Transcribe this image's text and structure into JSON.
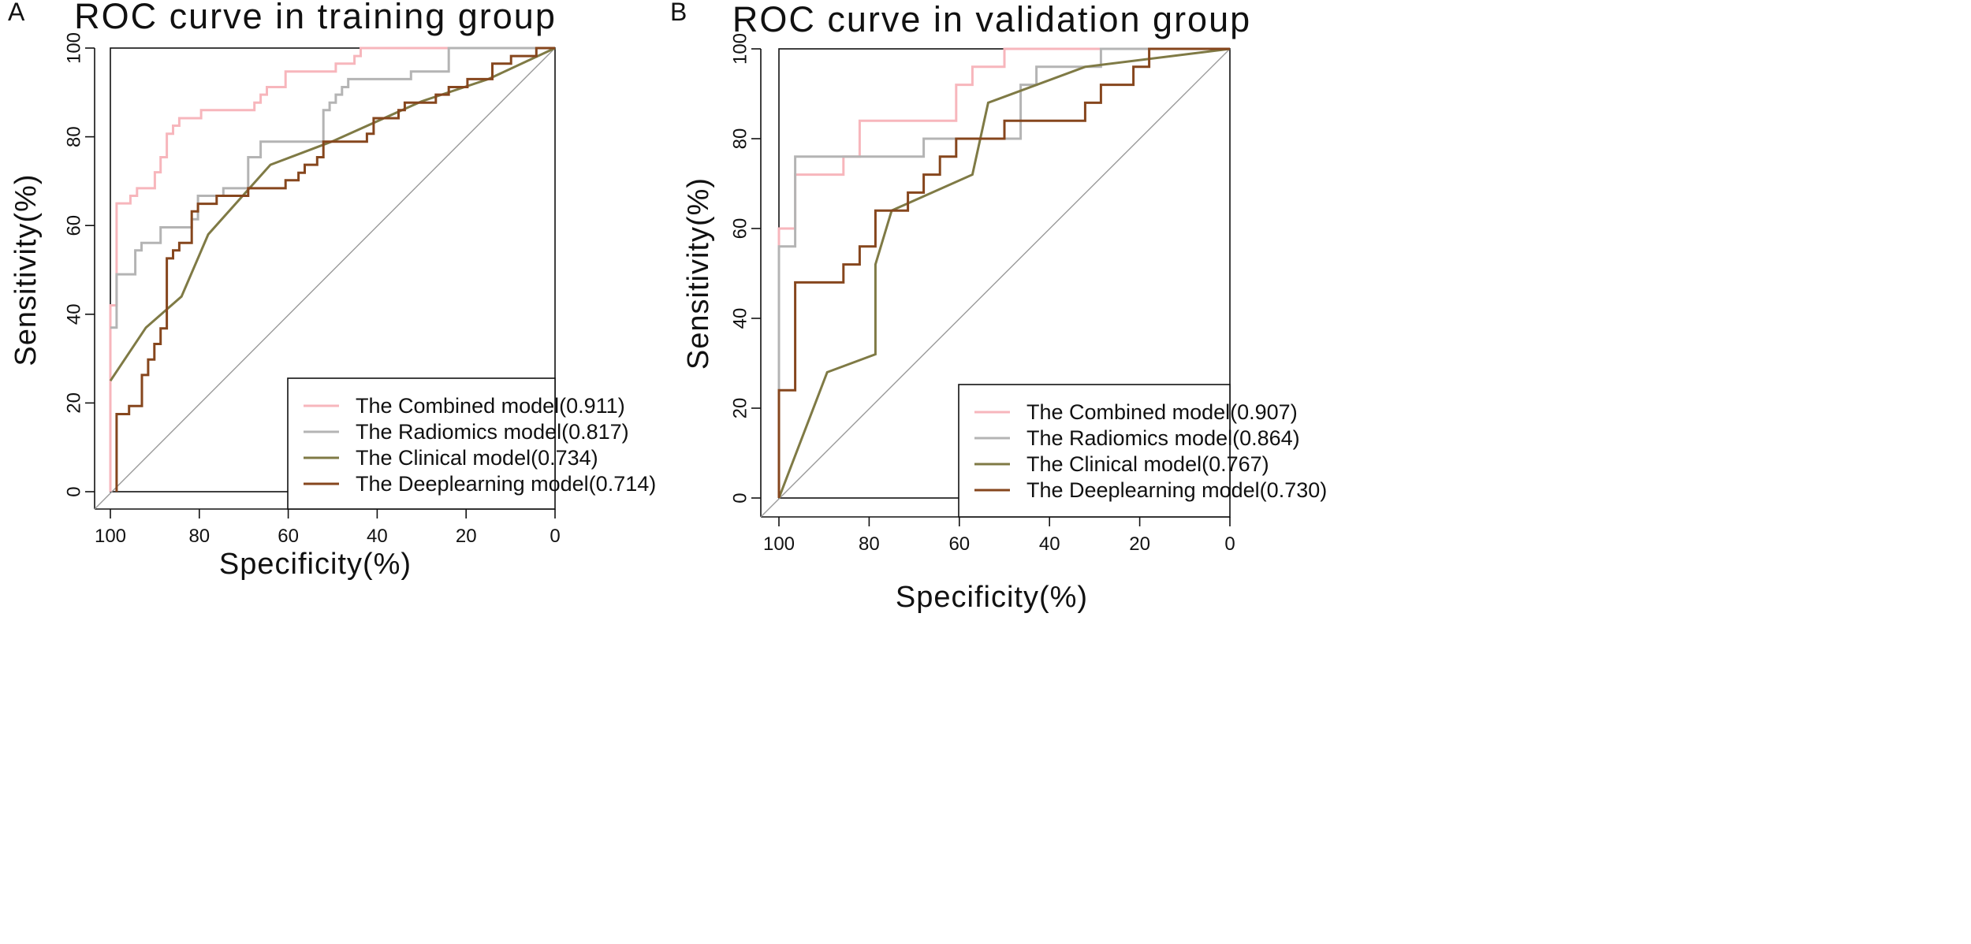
{
  "chart_data": [
    {
      "panel_label": "A",
      "type": "line",
      "title": "ROC curve in training group",
      "xlabel": "Specificity(%)",
      "ylabel": "Sensitivity(%)",
      "xlim": [
        100,
        0
      ],
      "ylim": [
        0,
        100
      ],
      "xticks": [
        100,
        80,
        60,
        40,
        20,
        0
      ],
      "yticks": [
        0,
        20,
        40,
        60,
        80,
        100
      ],
      "legend_position": "bottom-right",
      "reference_line": "diagonal",
      "series": [
        {
          "name": "The Combined model(0.911)",
          "color": "#f7b6bc",
          "points": [
            [
              100,
              0
            ],
            [
              100,
              42
            ],
            [
              98.6,
              42
            ],
            [
              98.6,
              65
            ],
            [
              95.5,
              65
            ],
            [
              95.5,
              66.7
            ],
            [
              94,
              66.7
            ],
            [
              94,
              68.4
            ],
            [
              90,
              68.4
            ],
            [
              90,
              72
            ],
            [
              88.7,
              72
            ],
            [
              88.7,
              75.4
            ],
            [
              87.3,
              75.4
            ],
            [
              87.3,
              80.7
            ],
            [
              85.9,
              80.7
            ],
            [
              85.9,
              82.5
            ],
            [
              84.5,
              82.5
            ],
            [
              84.5,
              84.2
            ],
            [
              79.6,
              84.2
            ],
            [
              79.6,
              86
            ],
            [
              67.6,
              86
            ],
            [
              67.6,
              87.7
            ],
            [
              66.2,
              87.7
            ],
            [
              66.2,
              89.5
            ],
            [
              64.8,
              89.5
            ],
            [
              64.8,
              91.2
            ],
            [
              60.6,
              91.2
            ],
            [
              60.6,
              94.7
            ],
            [
              49.3,
              94.7
            ],
            [
              49.3,
              96.5
            ],
            [
              45.1,
              96.5
            ],
            [
              45.1,
              98.2
            ],
            [
              43.7,
              98.2
            ],
            [
              43.7,
              100
            ],
            [
              0,
              100
            ]
          ]
        },
        {
          "name": "The Radiomics model(0.817)",
          "color": "#b4b4b4",
          "points": [
            [
              100,
              37
            ],
            [
              98.6,
              37
            ],
            [
              98.6,
              49
            ],
            [
              94.4,
              49
            ],
            [
              94.4,
              54.4
            ],
            [
              93,
              54.4
            ],
            [
              93,
              56.1
            ],
            [
              88.7,
              56.1
            ],
            [
              88.7,
              59.6
            ],
            [
              81.7,
              59.6
            ],
            [
              81.7,
              61.4
            ],
            [
              80.3,
              61.4
            ],
            [
              80.3,
              66.7
            ],
            [
              74.6,
              66.7
            ],
            [
              74.6,
              68.4
            ],
            [
              69,
              68.4
            ],
            [
              69,
              75.4
            ],
            [
              66.2,
              75.4
            ],
            [
              66.2,
              78.9
            ],
            [
              52.1,
              78.9
            ],
            [
              52.1,
              86
            ],
            [
              50.7,
              86
            ],
            [
              50.7,
              87.7
            ],
            [
              49.3,
              87.7
            ],
            [
              49.3,
              89.5
            ],
            [
              47.9,
              89.5
            ],
            [
              47.9,
              91.2
            ],
            [
              46.5,
              91.2
            ],
            [
              46.5,
              93
            ],
            [
              32.4,
              93
            ],
            [
              32.4,
              94.7
            ],
            [
              23.9,
              94.7
            ],
            [
              23.9,
              100
            ],
            [
              0,
              100
            ]
          ]
        },
        {
          "name": "The Clinical model(0.734)",
          "color": "#7f7a45",
          "points": [
            [
              100,
              25
            ],
            [
              92,
              37
            ],
            [
              84,
              44
            ],
            [
              78,
              58
            ],
            [
              64,
              73.7
            ],
            [
              50,
              79
            ],
            [
              30,
              88
            ],
            [
              15,
              93
            ],
            [
              0,
              100
            ]
          ]
        },
        {
          "name": "The Deeplearning model(0.714)",
          "color": "#86461d",
          "points": [
            [
              98.6,
              0
            ],
            [
              98.6,
              17.5
            ],
            [
              95.8,
              17.5
            ],
            [
              95.8,
              19.3
            ],
            [
              92.9,
              19.3
            ],
            [
              92.9,
              26.3
            ],
            [
              91.5,
              26.3
            ],
            [
              91.5,
              29.8
            ],
            [
              90.1,
              29.8
            ],
            [
              90.1,
              33.3
            ],
            [
              88.7,
              33.3
            ],
            [
              88.7,
              36.8
            ],
            [
              87.3,
              36.8
            ],
            [
              87.3,
              52.6
            ],
            [
              85.9,
              52.6
            ],
            [
              85.9,
              54.4
            ],
            [
              84.5,
              54.4
            ],
            [
              84.5,
              56.1
            ],
            [
              81.7,
              56.1
            ],
            [
              81.7,
              63.2
            ],
            [
              80.3,
              63.2
            ],
            [
              80.3,
              64.9
            ],
            [
              76.1,
              64.9
            ],
            [
              76.1,
              66.7
            ],
            [
              69,
              66.7
            ],
            [
              69,
              68.4
            ],
            [
              60.6,
              68.4
            ],
            [
              60.6,
              70.2
            ],
            [
              57.7,
              70.2
            ],
            [
              57.7,
              71.9
            ],
            [
              56.3,
              71.9
            ],
            [
              56.3,
              73.7
            ],
            [
              53.5,
              73.7
            ],
            [
              53.5,
              75.4
            ],
            [
              52.1,
              75.4
            ],
            [
              52.1,
              78.9
            ],
            [
              42.3,
              78.9
            ],
            [
              42.3,
              80.7
            ],
            [
              40.8,
              80.7
            ],
            [
              40.8,
              84.2
            ],
            [
              35.2,
              84.2
            ],
            [
              35.2,
              86
            ],
            [
              33.8,
              86
            ],
            [
              33.8,
              87.7
            ],
            [
              26.8,
              87.7
            ],
            [
              26.8,
              89.5
            ],
            [
              23.9,
              89.5
            ],
            [
              23.9,
              91.2
            ],
            [
              19.7,
              91.2
            ],
            [
              19.7,
              93
            ],
            [
              14.1,
              93
            ],
            [
              14.1,
              96.5
            ],
            [
              9.9,
              96.5
            ],
            [
              9.9,
              98.2
            ],
            [
              4.2,
              98.2
            ],
            [
              4.2,
              100
            ],
            [
              0,
              100
            ]
          ]
        }
      ]
    },
    {
      "panel_label": "B",
      "type": "line",
      "title": "ROC curve in validation group",
      "xlabel": "Specificity(%)",
      "ylabel": "Sensitivity(%)",
      "xlim": [
        100,
        0
      ],
      "ylim": [
        0,
        100
      ],
      "xticks": [
        100,
        80,
        60,
        40,
        20,
        0
      ],
      "yticks": [
        0,
        20,
        40,
        60,
        80,
        100
      ],
      "legend_position": "bottom-right",
      "reference_line": "diagonal",
      "series": [
        {
          "name": "The Combined model(0.907)",
          "color": "#f7b6bc",
          "points": [
            [
              100,
              0
            ],
            [
              100,
              60
            ],
            [
              96.4,
              60
            ],
            [
              96.4,
              72
            ],
            [
              85.7,
              72
            ],
            [
              85.7,
              76
            ],
            [
              82.1,
              76
            ],
            [
              82.1,
              84
            ],
            [
              60.7,
              84
            ],
            [
              60.7,
              92
            ],
            [
              57.1,
              92
            ],
            [
              57.1,
              96
            ],
            [
              50,
              96
            ],
            [
              50,
              100
            ],
            [
              0,
              100
            ]
          ]
        },
        {
          "name": "The Radiomics model(0.864)",
          "color": "#b4b4b4",
          "points": [
            [
              100,
              0
            ],
            [
              100,
              56
            ],
            [
              96.4,
              56
            ],
            [
              96.4,
              76
            ],
            [
              67.9,
              76
            ],
            [
              67.9,
              80
            ],
            [
              46.4,
              80
            ],
            [
              46.4,
              92
            ],
            [
              42.9,
              92
            ],
            [
              42.9,
              96
            ],
            [
              28.6,
              96
            ],
            [
              28.6,
              100
            ],
            [
              0,
              100
            ]
          ]
        },
        {
          "name": "The Clinical model(0.767)",
          "color": "#7f7a45",
          "points": [
            [
              100,
              0
            ],
            [
              89.3,
              28
            ],
            [
              78.6,
              32
            ],
            [
              78.6,
              52
            ],
            [
              75,
              64
            ],
            [
              57.1,
              72
            ],
            [
              53.6,
              88
            ],
            [
              32.1,
              96
            ],
            [
              0,
              100
            ]
          ]
        },
        {
          "name": "The Deeplearning model(0.730)",
          "color": "#86461d",
          "points": [
            [
              100,
              0
            ],
            [
              100,
              24
            ],
            [
              96.4,
              24
            ],
            [
              96.4,
              48
            ],
            [
              85.7,
              48
            ],
            [
              85.7,
              52
            ],
            [
              82.1,
              52
            ],
            [
              82.1,
              56
            ],
            [
              78.6,
              56
            ],
            [
              78.6,
              64
            ],
            [
              71.4,
              64
            ],
            [
              71.4,
              68
            ],
            [
              67.9,
              68
            ],
            [
              67.9,
              72
            ],
            [
              64.3,
              72
            ],
            [
              64.3,
              76
            ],
            [
              60.7,
              76
            ],
            [
              60.7,
              80
            ],
            [
              50,
              80
            ],
            [
              50,
              84
            ],
            [
              32.1,
              84
            ],
            [
              32.1,
              88
            ],
            [
              28.6,
              88
            ],
            [
              28.6,
              92
            ],
            [
              21.4,
              92
            ],
            [
              21.4,
              96
            ],
            [
              17.9,
              96
            ],
            [
              17.9,
              100
            ],
            [
              0,
              100
            ]
          ]
        }
      ]
    }
  ]
}
